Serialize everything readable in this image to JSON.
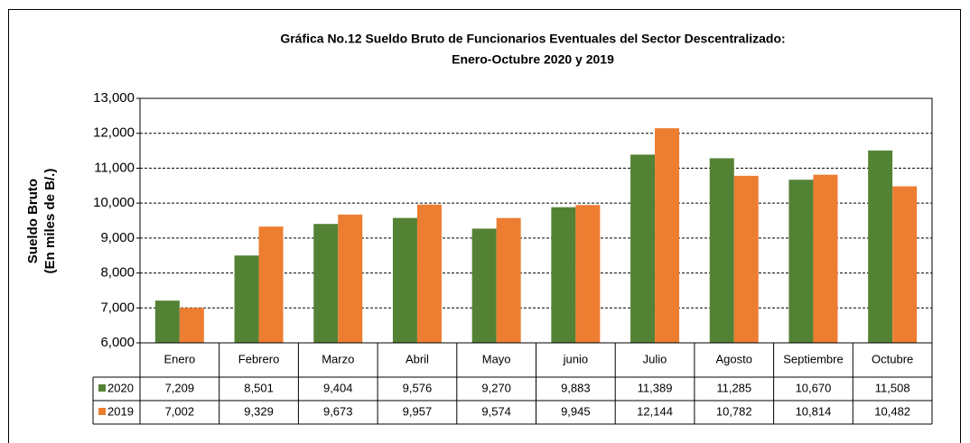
{
  "chart_data": {
    "type": "bar",
    "title": "Gráfica No.12 Sueldo Bruto de Funcionarios Eventuales del Sector Descentralizado:",
    "subtitle": "Enero-Octubre 2020 y 2019",
    "y_label": [
      "Sueldo Bruto",
      "(En miles de B/.)"
    ],
    "categories": [
      "Enero",
      "Febrero",
      "Marzo",
      "Abril",
      "Mayo",
      "junio",
      "Julio",
      "Agosto",
      "Septiembre",
      "Octubre"
    ],
    "series": [
      {
        "name": "2020",
        "color": "#548235",
        "values": [
          7209,
          8501,
          9404,
          9576,
          9270,
          9883,
          11389,
          11285,
          10670,
          11508
        ],
        "value_labels": [
          "7,209",
          "8,501",
          "9,404",
          "9,576",
          "9,270",
          "9,883",
          "11,389",
          "11,285",
          "10,670",
          "11,508"
        ]
      },
      {
        "name": "2019",
        "color": "#ed7d31",
        "values": [
          7002,
          9329,
          9673,
          9957,
          9574,
          9945,
          12144,
          10782,
          10814,
          10482
        ],
        "value_labels": [
          "7,002",
          "9,329",
          "9,673",
          "9,957",
          "9,574",
          "9,945",
          "12,144",
          "10,782",
          "10,814",
          "10,482"
        ]
      }
    ],
    "ylim": [
      6000,
      13000
    ],
    "yticks": [
      {
        "value": 6000,
        "label": "6,000"
      },
      {
        "value": 7000,
        "label": "7,000"
      },
      {
        "value": 8000,
        "label": "8,000"
      },
      {
        "value": 9000,
        "label": "9,000"
      },
      {
        "value": 10000,
        "label": "10,000"
      },
      {
        "value": 11000,
        "label": "11,000"
      },
      {
        "value": 12000,
        "label": "12,000"
      },
      {
        "value": 13000,
        "label": "13,000"
      }
    ],
    "grid": true
  }
}
